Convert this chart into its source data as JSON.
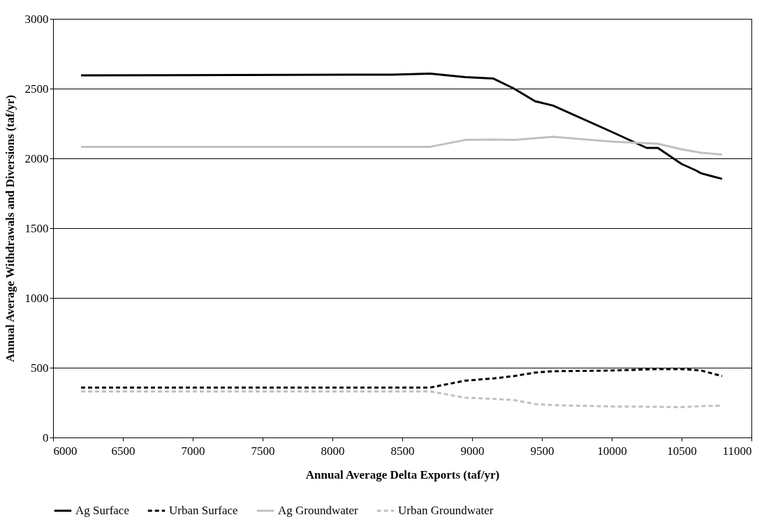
{
  "chart_data": {
    "type": "line",
    "xlabel": "Annual Average Delta Exports (taf/yr)",
    "ylabel": "Annual Average Withdrawals and Diversions (taf/yr)",
    "xlim": [
      6000,
      11000
    ],
    "xticks": [
      6000,
      6500,
      7000,
      7500,
      8000,
      8500,
      9000,
      9500,
      10000,
      10500,
      11000
    ],
    "ylim": [
      0,
      3000
    ],
    "yticks": [
      0,
      500,
      1000,
      1500,
      2000,
      2500,
      3000
    ],
    "grid": "y",
    "legend": "bottom",
    "marker": "none",
    "series": [
      {
        "name": "Ag Surface",
        "color": "#000000",
        "line_style": "solid",
        "x": [
          6200,
          8430,
          8700,
          8950,
          9150,
          9300,
          9450,
          9580,
          10000,
          10250,
          10330,
          10500,
          10600,
          10640,
          10790
        ],
        "values": [
          2595,
          2600,
          2607,
          2583,
          2573,
          2500,
          2410,
          2378,
          2190,
          2075,
          2075,
          1960,
          1915,
          1893,
          1853
        ]
      },
      {
        "name": "Urban Surface",
        "color": "#000000",
        "line_style": "dashed",
        "x": [
          6200,
          8700,
          8950,
          9150,
          9300,
          9450,
          9580,
          10000,
          10330,
          10500,
          10640,
          10790
        ],
        "values": [
          358,
          358,
          407,
          423,
          440,
          465,
          475,
          480,
          490,
          490,
          480,
          440
        ]
      },
      {
        "name": "Ag Groundwater",
        "color": "#c0c0c0",
        "line_style": "solid",
        "x": [
          6200,
          8700,
          8950,
          9150,
          9300,
          9580,
          10000,
          10330,
          10500,
          10600,
          10640,
          10790
        ],
        "values": [
          2083,
          2083,
          2132,
          2135,
          2132,
          2155,
          2120,
          2105,
          2065,
          2048,
          2040,
          2028
        ]
      },
      {
        "name": "Urban Groundwater",
        "color": "#c0c0c0",
        "line_style": "dashed",
        "x": [
          6200,
          8700,
          8950,
          9150,
          9300,
          9450,
          9580,
          10000,
          10330,
          10500,
          10640,
          10790
        ],
        "values": [
          330,
          330,
          285,
          277,
          268,
          240,
          232,
          222,
          220,
          217,
          225,
          228
        ]
      }
    ]
  }
}
